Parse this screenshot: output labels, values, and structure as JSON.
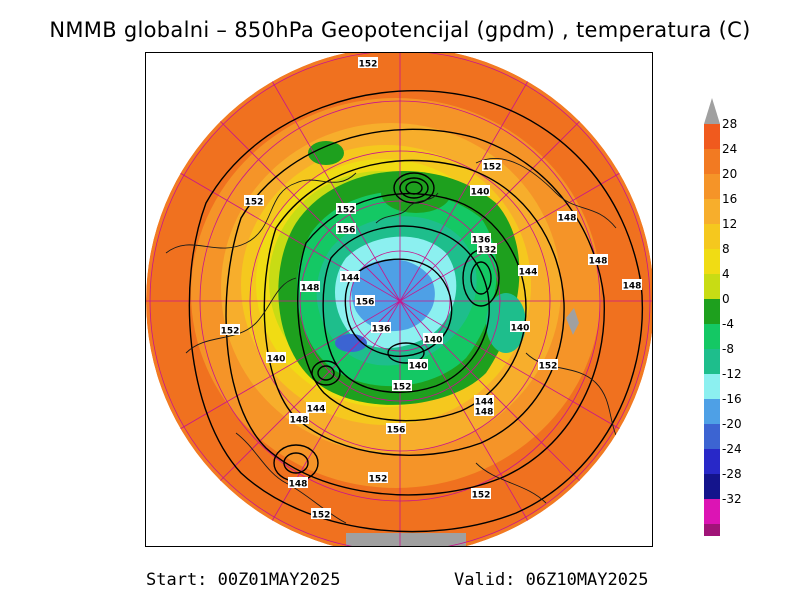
{
  "title": "NMMB globalni – 850hPa Geopotencijal (gpdm) , temperatura (C)",
  "footer": {
    "start": "Start: 00Z01MAY2025",
    "valid": "Valid: 06Z10MAY2025"
  },
  "colorbar": {
    "labels": [
      "28",
      "24",
      "20",
      "16",
      "12",
      "8",
      "4",
      "0",
      "-4",
      "-8",
      "-12",
      "-16",
      "-20",
      "-24",
      "-28",
      "-32"
    ],
    "colors": [
      "#f05a1e",
      "#f27a22",
      "#f59428",
      "#f7ae2c",
      "#f5c81e",
      "#f0dc14",
      "#c8dc14",
      "#1ea01e",
      "#14c864",
      "#1ebe8c",
      "#8cf0f0",
      "#4ea0e6",
      "#3c64d2",
      "#2828c8",
      "#14148c",
      "#dc14b4",
      "#a01478"
    ],
    "top_cap_color": "#a0a0a0",
    "bottom_cap_color": "#8c1464"
  },
  "height_labels": [
    {
      "text": "152"
    },
    {
      "text": "152"
    },
    {
      "text": "152"
    },
    {
      "text": "140"
    },
    {
      "text": "152"
    },
    {
      "text": "156"
    },
    {
      "text": "148"
    },
    {
      "text": "136"
    },
    {
      "text": "132"
    },
    {
      "text": "148"
    },
    {
      "text": "144"
    },
    {
      "text": "148"
    },
    {
      "text": "144"
    },
    {
      "text": "148"
    },
    {
      "text": "156"
    },
    {
      "text": "152"
    },
    {
      "text": "136"
    },
    {
      "text": "140"
    },
    {
      "text": "140"
    },
    {
      "text": "140"
    },
    {
      "text": "140"
    },
    {
      "text": "152"
    },
    {
      "text": "152"
    },
    {
      "text": "144"
    },
    {
      "text": "148"
    },
    {
      "text": "148"
    },
    {
      "text": "156"
    },
    {
      "text": "144"
    },
    {
      "text": "148"
    },
    {
      "text": "152"
    },
    {
      "text": "152"
    },
    {
      "text": "152"
    }
  ]
}
